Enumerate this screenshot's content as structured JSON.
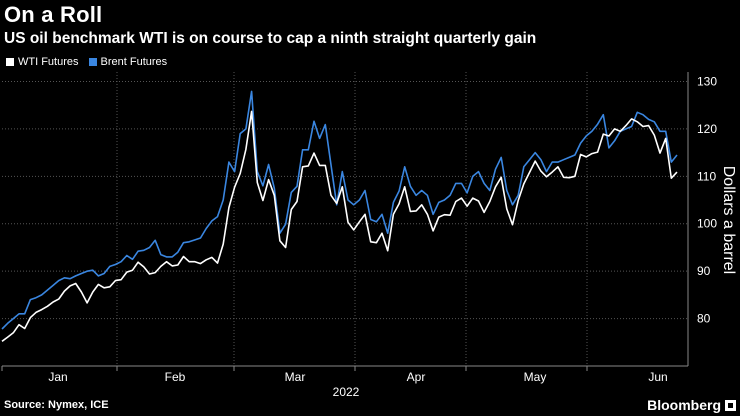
{
  "header": {
    "title": "On a Roll",
    "subtitle": "US oil benchmark WTI is on course to cap a ninth straight quarterly gain"
  },
  "footer": {
    "source": "Source: Nymex, ICE",
    "brand": "Bloomberg"
  },
  "colors": {
    "background": "#000000",
    "wti": "#ffffff",
    "brent": "#3a86e0",
    "grid": "#555555"
  },
  "chart_data": {
    "type": "line",
    "title": "On a Roll",
    "xlabel": "2022",
    "ylabel": "Dollars a barrel",
    "ylim": [
      70,
      132
    ],
    "yticks": [
      80,
      90,
      100,
      110,
      120,
      130
    ],
    "xticks": [
      "Jan",
      "Feb",
      "Mar",
      "Apr",
      "May",
      "Jun"
    ],
    "legend": "top-left",
    "grid": true,
    "series": [
      {
        "name": "WTI Futures",
        "values": [
          75.2,
          76.1,
          77.0,
          78.7,
          77.9,
          80.2,
          81.3,
          81.9,
          82.6,
          83.5,
          84.1,
          85.8,
          86.9,
          87.4,
          85.6,
          83.3,
          85.6,
          87.2,
          86.5,
          86.7,
          88.0,
          88.2,
          89.8,
          90.2,
          91.9,
          90.9,
          89.4,
          89.7,
          91.0,
          92.0,
          91.1,
          91.3,
          93.1,
          92.0,
          92.0,
          91.6,
          92.4,
          92.9,
          91.7,
          95.7,
          103.4,
          107.7,
          110.6,
          115.7,
          123.7,
          108.7,
          104.9,
          109.3,
          106.0,
          96.4,
          95.0,
          103.0,
          104.7,
          112.0,
          112.2,
          114.9,
          112.3,
          112.3,
          106.0,
          104.3,
          107.8,
          100.3,
          98.7,
          100.4,
          102.0,
          96.2,
          96.0,
          98.0,
          94.3,
          102.0,
          104.2,
          107.8,
          102.6,
          102.7,
          104.0,
          102.0,
          98.5,
          101.4,
          101.9,
          101.8,
          104.7,
          105.4,
          103.7,
          105.4,
          104.8,
          102.4,
          104.7,
          107.8,
          109.8,
          103.1,
          99.8,
          104.9,
          108.4,
          110.8,
          113.2,
          111.1,
          109.9,
          110.9,
          112.0,
          109.8,
          109.7,
          110.0,
          114.6,
          114.1,
          114.8,
          115.1,
          118.9,
          118.5,
          120.0,
          119.5,
          120.7,
          122.1,
          121.5,
          120.5,
          120.7,
          118.7,
          114.9,
          118.0,
          109.6,
          110.9
        ]
      },
      {
        "name": "Brent Futures",
        "values": [
          77.8,
          79.0,
          80.0,
          81.0,
          81.0,
          84.0,
          84.4,
          85.0,
          86.0,
          87.0,
          88.0,
          88.6,
          88.4,
          89.0,
          89.5,
          90.0,
          90.2,
          89.0,
          89.5,
          91.0,
          91.4,
          92.0,
          93.3,
          92.5,
          94.2,
          94.4,
          95.0,
          96.5,
          93.5,
          93.0,
          93.0,
          94.0,
          96.0,
          96.2,
          96.6,
          97.0,
          99.0,
          100.6,
          101.5,
          105.0,
          113.0,
          111.0,
          119.0,
          120.0,
          127.9,
          111.0,
          108.0,
          112.5,
          107.5,
          98.0,
          99.9,
          106.6,
          107.9,
          115.6,
          115.6,
          121.6,
          118.0,
          120.9,
          112.4,
          104.0,
          111.0,
          105.0,
          104.0,
          105.0,
          107.0,
          100.9,
          100.4,
          102.0,
          98.0,
          104.5,
          106.9,
          112.0,
          107.9,
          106.0,
          107.0,
          106.0,
          102.0,
          104.5,
          105.0,
          106.0,
          108.5,
          108.5,
          106.5,
          110.0,
          111.0,
          108.5,
          107.0,
          111.5,
          114.0,
          107.0,
          104.0,
          106.0,
          112.0,
          113.5,
          115.0,
          113.5,
          111.0,
          113.0,
          113.0,
          113.5,
          114.0,
          114.5,
          117.0,
          118.5,
          119.5,
          121.0,
          123.0,
          116.0,
          117.5,
          119.5,
          120.0,
          120.5,
          123.5,
          123.0,
          122.0,
          121.5,
          119.5,
          119.5,
          113.0,
          114.5
        ]
      }
    ]
  }
}
